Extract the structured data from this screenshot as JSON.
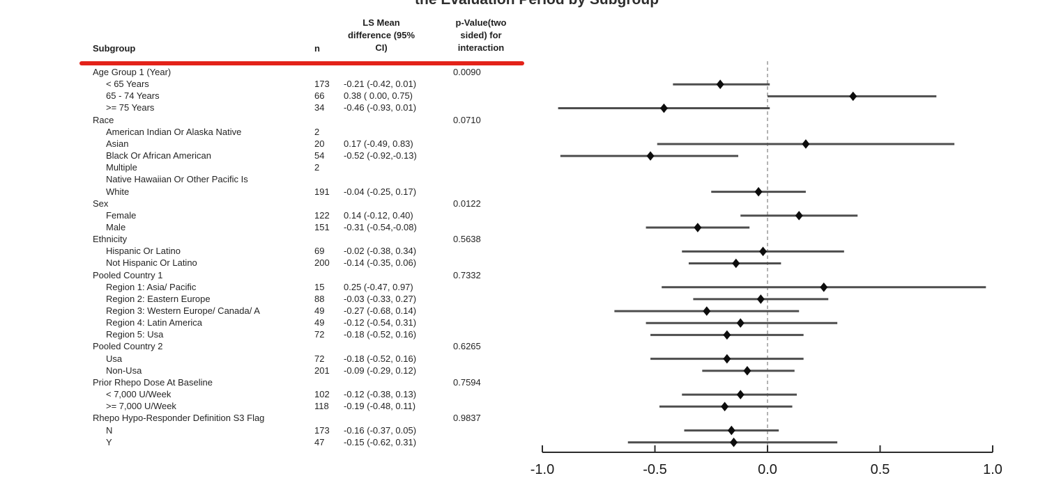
{
  "title": "the Evaluation Period by Subgroup",
  "annotation": {
    "type": "highlight-underline",
    "color": "#e32219"
  },
  "table_headers": {
    "subgroup": "Subgroup",
    "n": "n",
    "ls_mean": "LS Mean\ndifference (95%\nCI)",
    "p_value": "p-Value(two\nsided) for\ninteraction"
  },
  "chart_data": {
    "type": "scatter",
    "variant": "forest-plot",
    "title": "the Evaluation Period by Subgroup",
    "xlabel": "",
    "xlim": [
      -1.0,
      1.0
    ],
    "x_ticks": [
      -1.0,
      -0.5,
      0.0,
      0.5,
      1.0
    ],
    "x_tick_labels": [
      "-1.0",
      "-0.5",
      "0.0",
      "0.5",
      "1.0"
    ],
    "reference_line_x": 0.0,
    "grid": false,
    "marker": "diamond",
    "legend": "none",
    "colors": {
      "marker": "#0d0d0d",
      "ci_line": "#4d4d4d",
      "reference_line": "#9a9a9a",
      "axis": "#2b2b2b",
      "text": "#222222"
    },
    "rows": [
      {
        "label": "Age Group 1 (Year)",
        "indent": 0,
        "p": "0.0090"
      },
      {
        "label": "< 65 Years",
        "indent": 1,
        "n": "173",
        "ci_text": "-0.21 (-0.42, 0.01)",
        "est": -0.21,
        "lo": -0.42,
        "hi": 0.01
      },
      {
        "label": "65 - 74 Years",
        "indent": 1,
        "n": "66",
        "ci_text": "0.38 ( 0.00, 0.75)",
        "est": 0.38,
        "lo": 0.0,
        "hi": 0.75
      },
      {
        "label": ">= 75 Years",
        "indent": 1,
        "n": "34",
        "ci_text": "-0.46 (-0.93, 0.01)",
        "est": -0.46,
        "lo": -0.93,
        "hi": 0.01
      },
      {
        "label": "Race",
        "indent": 0,
        "p": "0.0710"
      },
      {
        "label": "American Indian Or Alaska Native",
        "indent": 1,
        "n": "2"
      },
      {
        "label": "Asian",
        "indent": 1,
        "n": "20",
        "ci_text": "0.17 (-0.49, 0.83)",
        "est": 0.17,
        "lo": -0.49,
        "hi": 0.83
      },
      {
        "label": "Black Or African American",
        "indent": 1,
        "n": "54",
        "ci_text": "-0.52 (-0.92,-0.13)",
        "est": -0.52,
        "lo": -0.92,
        "hi": -0.13
      },
      {
        "label": "Multiple",
        "indent": 1,
        "n": "2"
      },
      {
        "label": "Native Hawaiian Or Other Pacific Is",
        "indent": 1
      },
      {
        "label": "White",
        "indent": 1,
        "n": "191",
        "ci_text": "-0.04 (-0.25, 0.17)",
        "est": -0.04,
        "lo": -0.25,
        "hi": 0.17
      },
      {
        "label": "Sex",
        "indent": 0,
        "p": "0.0122"
      },
      {
        "label": "Female",
        "indent": 1,
        "n": "122",
        "ci_text": "0.14 (-0.12, 0.40)",
        "est": 0.14,
        "lo": -0.12,
        "hi": 0.4
      },
      {
        "label": "Male",
        "indent": 1,
        "n": "151",
        "ci_text": "-0.31 (-0.54,-0.08)",
        "est": -0.31,
        "lo": -0.54,
        "hi": -0.08
      },
      {
        "label": "Ethnicity",
        "indent": 0,
        "p": "0.5638"
      },
      {
        "label": "Hispanic Or Latino",
        "indent": 1,
        "n": "69",
        "ci_text": "-0.02 (-0.38, 0.34)",
        "est": -0.02,
        "lo": -0.38,
        "hi": 0.34
      },
      {
        "label": "Not Hispanic Or Latino",
        "indent": 1,
        "n": "200",
        "ci_text": "-0.14 (-0.35, 0.06)",
        "est": -0.14,
        "lo": -0.35,
        "hi": 0.06
      },
      {
        "label": "Pooled Country 1",
        "indent": 0,
        "p": "0.7332"
      },
      {
        "label": "Region 1: Asia/ Pacific",
        "indent": 1,
        "n": "15",
        "ci_text": "0.25 (-0.47, 0.97)",
        "est": 0.25,
        "lo": -0.47,
        "hi": 0.97
      },
      {
        "label": "Region 2: Eastern Europe",
        "indent": 1,
        "n": "88",
        "ci_text": "-0.03 (-0.33, 0.27)",
        "est": -0.03,
        "lo": -0.33,
        "hi": 0.27
      },
      {
        "label": "Region 3: Western Europe/ Canada/ A",
        "indent": 1,
        "n": "49",
        "ci_text": "-0.27 (-0.68, 0.14)",
        "est": -0.27,
        "lo": -0.68,
        "hi": 0.14
      },
      {
        "label": "Region 4: Latin America",
        "indent": 1,
        "n": "49",
        "ci_text": "-0.12 (-0.54, 0.31)",
        "est": -0.12,
        "lo": -0.54,
        "hi": 0.31
      },
      {
        "label": "Region 5: Usa",
        "indent": 1,
        "n": "72",
        "ci_text": "-0.18 (-0.52, 0.16)",
        "est": -0.18,
        "lo": -0.52,
        "hi": 0.16
      },
      {
        "label": "Pooled Country 2",
        "indent": 0,
        "p": "0.6265"
      },
      {
        "label": "Usa",
        "indent": 1,
        "n": "72",
        "ci_text": "-0.18 (-0.52, 0.16)",
        "est": -0.18,
        "lo": -0.52,
        "hi": 0.16
      },
      {
        "label": "Non-Usa",
        "indent": 1,
        "n": "201",
        "ci_text": "-0.09 (-0.29, 0.12)",
        "est": -0.09,
        "lo": -0.29,
        "hi": 0.12
      },
      {
        "label": "Prior Rhepo Dose At Baseline",
        "indent": 0,
        "p": "0.7594"
      },
      {
        "label": "< 7,000 U/Week",
        "indent": 1,
        "n": "102",
        "ci_text": "-0.12 (-0.38, 0.13)",
        "est": -0.12,
        "lo": -0.38,
        "hi": 0.13
      },
      {
        "label": ">= 7,000 U/Week",
        "indent": 1,
        "n": "118",
        "ci_text": "-0.19 (-0.48, 0.11)",
        "est": -0.19,
        "lo": -0.48,
        "hi": 0.11
      },
      {
        "label": "Rhepo Hypo-Responder Definition S3 Flag",
        "indent": 0,
        "p": "0.9837"
      },
      {
        "label": "N",
        "indent": 1,
        "n": "173",
        "ci_text": "-0.16 (-0.37, 0.05)",
        "est": -0.16,
        "lo": -0.37,
        "hi": 0.05
      },
      {
        "label": "Y",
        "indent": 1,
        "n": "47",
        "ci_text": "-0.15 (-0.62, 0.31)",
        "est": -0.15,
        "lo": -0.62,
        "hi": 0.31
      }
    ]
  }
}
